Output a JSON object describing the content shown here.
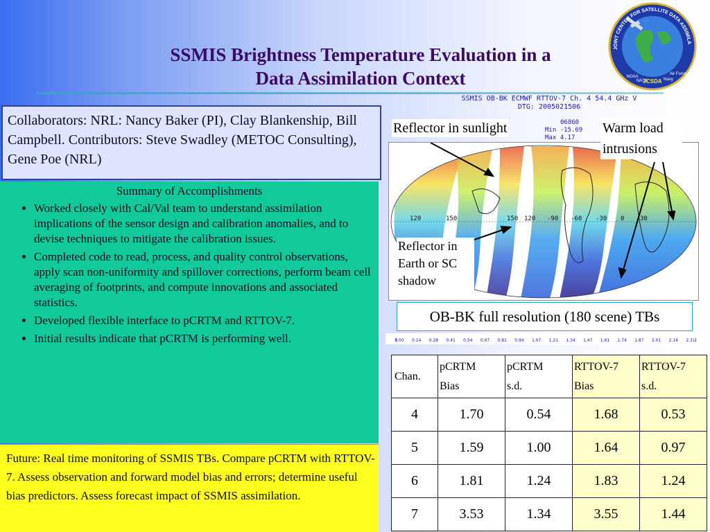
{
  "title": {
    "line1": "SSMIS Brightness Temperature Evaluation in a",
    "line2": "Data Assimilation Context"
  },
  "logo": {
    "ring_text": "JOINT CENTER FOR SATELLITE DATA ASSIMILATION",
    "bottom_labels": [
      "NOAA",
      "NASA",
      "JCSDA",
      "Navy",
      "Air Force"
    ],
    "icon": "globe-satellite-logo"
  },
  "collaborators": "Collaborators: NRL: Nancy Baker (PI), Clay Blankenship, Bill Campbell. Contributors: Steve Swadley (METOC Consulting), Gene Poe (NRL)",
  "summary": {
    "heading": "Summary of Accomplishments",
    "items": [
      "Worked closely with Cal/Val team to understand assimilation implications of the sensor design and calibration anomalies, and to devise techniques to mitigate the calibration issues.",
      "Completed code to read, process, and quality control observations, apply scan non-uniformity and spillover corrections, perform beam cell averaging of footprints, and compute innovations and associated statistics.",
      "Developed flexible interface to pCRTM and RTTOV-7.",
      "Initial results indicate that pCRTM is performing well."
    ]
  },
  "future": "Future: Real time monitoring of SSMIS TBs.  Compare pCRTM with RTTOV-7. Assess observation and forward model bias and errors; determine useful bias predictors. Assess forecast impact of SSMIS assimilation.",
  "map": {
    "title_line1": "SSMIS OB-BK ECMWF RTTOV-7 Ch. 4 54.4 GHz V",
    "title_line2": "DTG: 2005021506",
    "count": "06860",
    "min_label": "Min",
    "min_value": "-15.69",
    "max_label": "Max",
    "max_value": "4.17",
    "lon_labels": [
      "120",
      "150",
      "150",
      "120",
      "-90",
      "-60",
      "-30",
      "0",
      "30"
    ],
    "annotations": {
      "sunlight": "Reflector in sunlight",
      "warm_load": "Warm load intrusions",
      "shadow": "Reflector in Earth or SC shadow"
    },
    "caption": "OB-BK full resolution (180 scene) TBs",
    "colorbar_ticks": [
      "0.00",
      "0.14",
      "0.28",
      "0.41",
      "0.54",
      "0.67",
      "0.81",
      "0.94",
      "1.07",
      "1.21",
      "1.34",
      "1.47",
      "1.61",
      "1.74",
      "1.87",
      "2.01",
      "2.14",
      "2.31"
    ],
    "colors": [
      "#2b1f8a",
      "#2f5fd8",
      "#3aa0f0",
      "#58d1e8",
      "#7ee39a",
      "#c5ef55",
      "#f6e04a",
      "#f6a23a",
      "#e5502a",
      "#b81818"
    ]
  },
  "table": {
    "headers": {
      "chan": "Chan.",
      "pcrtm_bias": [
        "pCRTM",
        "Bias"
      ],
      "pcrtm_sd": [
        "pCRTM",
        "s.d."
      ],
      "rttov_bias": [
        "RTTOV-7",
        "Bias"
      ],
      "rttov_sd": [
        "RTTOV-7",
        "s.d."
      ]
    },
    "rows": [
      {
        "chan": "4",
        "pcrtm_bias": "1.70",
        "pcrtm_sd": "0.54",
        "rttov_bias": "1.68",
        "rttov_sd": "0.53"
      },
      {
        "chan": "5",
        "pcrtm_bias": "1.59",
        "pcrtm_sd": "1.00",
        "rttov_bias": "1.64",
        "rttov_sd": "0.97"
      },
      {
        "chan": "6",
        "pcrtm_bias": "1.81",
        "pcrtm_sd": "1.24",
        "rttov_bias": "1.83",
        "rttov_sd": "1.24"
      },
      {
        "chan": "7",
        "pcrtm_bias": "3.53",
        "pcrtm_sd": "1.34",
        "rttov_bias": "3.55",
        "rttov_sd": "1.44"
      }
    ]
  }
}
